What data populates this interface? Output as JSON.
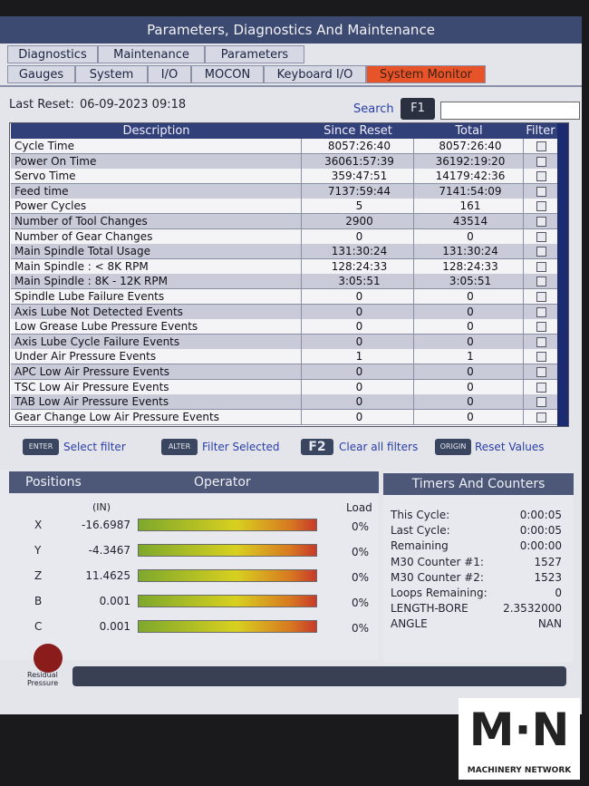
{
  "header": {
    "title": "Parameters, Diagnostics And Maintenance"
  },
  "tabs_top": [
    "Diagnostics",
    "Maintenance",
    "Parameters"
  ],
  "tabs_sub": [
    "Gauges",
    "System",
    "I/O",
    "MOCON",
    "Keyboard I/O",
    "System Monitor"
  ],
  "last_reset": {
    "label": "Last Reset:",
    "value": "06-09-2023 09:18"
  },
  "search": {
    "label": "Search",
    "key": "F1"
  },
  "table": {
    "headers": [
      "Description",
      "Since Reset",
      "Total",
      "Filter"
    ],
    "rows": [
      [
        "Cycle Time",
        "8057:26:40",
        "8057:26:40"
      ],
      [
        "Power On Time",
        "36061:57:39",
        "36192:19:20"
      ],
      [
        "Servo Time",
        "359:47:51",
        "14179:42:36"
      ],
      [
        "Feed time",
        "7137:59:44",
        "7141:54:09"
      ],
      [
        "Power Cycles",
        "5",
        "161"
      ],
      [
        "Number of Tool Changes",
        "2900",
        "43514"
      ],
      [
        "Number of Gear Changes",
        "0",
        "0"
      ],
      [
        "Main Spindle Total Usage",
        "131:30:24",
        "131:30:24"
      ],
      [
        "Main Spindle : < 8K RPM",
        "128:24:33",
        "128:24:33"
      ],
      [
        "Main Spindle : 8K - 12K RPM",
        "3:05:51",
        "3:05:51"
      ],
      [
        "Spindle Lube Failure Events",
        "0",
        "0"
      ],
      [
        "Axis Lube Not Detected Events",
        "0",
        "0"
      ],
      [
        "Low Grease Lube Pressure Events",
        "0",
        "0"
      ],
      [
        "Axis Lube Cycle Failure Events",
        "0",
        "0"
      ],
      [
        "Under Air Pressure Events",
        "1",
        "1"
      ],
      [
        "APC Low Air Pressure Events",
        "0",
        "0"
      ],
      [
        "TSC Low Air Pressure Events",
        "0",
        "0"
      ],
      [
        "TAB Low Air Pressure Events",
        "0",
        "0"
      ],
      [
        "Gear Change Low Air Pressure Events",
        "0",
        "0"
      ]
    ]
  },
  "keys": [
    {
      "key": "ENTER",
      "label": "Select filter"
    },
    {
      "key": "ALTER",
      "label": "Filter Selected"
    },
    {
      "key": "F2",
      "label": "Clear all filters"
    },
    {
      "key": "ORIGIN",
      "label": "Reset Values"
    }
  ],
  "positions": {
    "title": "Positions",
    "mode": "Operator",
    "unit": "(IN)",
    "load": "Load",
    "axes": [
      {
        "name": "X",
        "value": "-16.6987",
        "load": "0%"
      },
      {
        "name": "Y",
        "value": "-4.3467",
        "load": "0%"
      },
      {
        "name": "Z",
        "value": "11.4625",
        "load": "0%"
      },
      {
        "name": "B",
        "value": "0.001",
        "load": "0%"
      },
      {
        "name": "C",
        "value": "0.001",
        "load": "0%"
      }
    ]
  },
  "timers": {
    "title": "Timers And Counters",
    "rows": [
      [
        "This Cycle:",
        "0:00:05"
      ],
      [
        "Last Cycle:",
        "0:00:05"
      ],
      [
        "Remaining",
        "0:00:00"
      ],
      [
        "M30 Counter #1:",
        "1527"
      ],
      [
        "M30 Counter #2:",
        "1523"
      ],
      [
        "Loops Remaining:",
        "0"
      ],
      [
        "LENGTH-BORE",
        "2.3532000"
      ],
      [
        "ANGLE",
        "NAN"
      ]
    ]
  },
  "residual": "Residual Pressure",
  "watermark": {
    "logo": "M·N",
    "text": "MACHINERY NETWORK"
  }
}
